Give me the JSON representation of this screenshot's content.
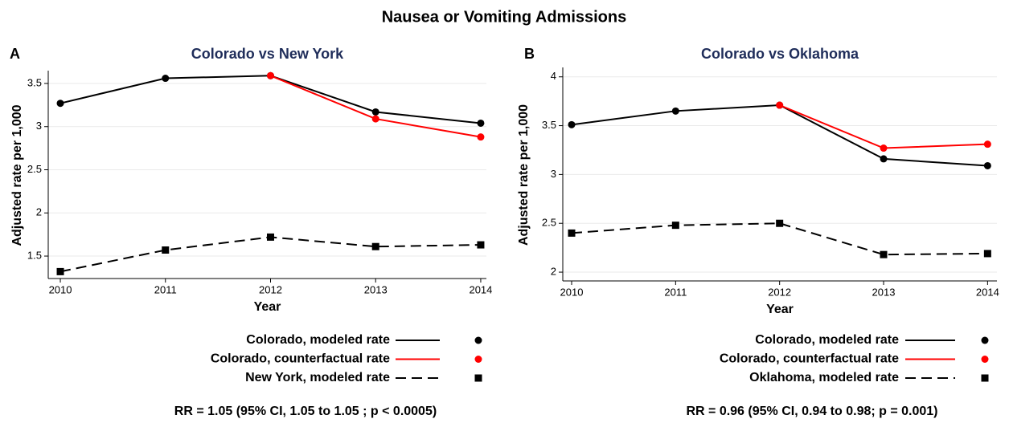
{
  "title": "Nausea or Vomiting Admissions",
  "chart_data": [
    {
      "type": "line",
      "panel_label": "A",
      "title": "Colorado vs New York",
      "xlabel": "Year",
      "ylabel": "Adjusted rate per 1,000",
      "x": [
        2010,
        2011,
        2012,
        2013,
        2014
      ],
      "xlim": [
        2009.885,
        2014.054
      ],
      "xticks": [
        2010,
        2011,
        2012,
        2013,
        2014
      ],
      "ylim": [
        1.24,
        3.63
      ],
      "yticks": [
        1.5,
        2,
        2.5,
        3,
        3.5
      ],
      "grid": true,
      "series": [
        {
          "name": "Colorado, modeled rate",
          "color": "#000000",
          "dash": "solid",
          "marker": "circle",
          "values": [
            3.27,
            3.56,
            3.59,
            3.17,
            3.04
          ]
        },
        {
          "name": "Colorado, counterfactual rate",
          "color": "#ff0000",
          "dash": "solid",
          "marker": "circle",
          "values": [
            null,
            null,
            3.59,
            3.09,
            2.88
          ]
        },
        {
          "name": "New York, modeled rate",
          "color": "#000000",
          "dash": "dashed",
          "marker": "square",
          "values": [
            1.32,
            1.57,
            1.72,
            1.61,
            1.63
          ]
        }
      ],
      "annotation": "RR = 1.05 (95% CI, 1.05 to 1.05 ; p < 0.0005)"
    },
    {
      "type": "line",
      "panel_label": "B",
      "title": "Colorado vs Oklahoma",
      "xlabel": "Year",
      "ylabel": "Adjusted rate per 1,000",
      "x": [
        2010,
        2011,
        2012,
        2013,
        2014
      ],
      "xlim": [
        2009.915,
        2014.09
      ],
      "xticks": [
        2010,
        2011,
        2012,
        2013,
        2014
      ],
      "ylim": [
        1.91,
        4.08
      ],
      "yticks": [
        2,
        2.5,
        3,
        3.5,
        4
      ],
      "grid": true,
      "series": [
        {
          "name": "Colorado, modeled rate",
          "color": "#000000",
          "dash": "solid",
          "marker": "circle",
          "values": [
            3.51,
            3.65,
            3.71,
            3.16,
            3.09
          ]
        },
        {
          "name": "Colorado, counterfactual rate",
          "color": "#ff0000",
          "dash": "solid",
          "marker": "circle",
          "values": [
            null,
            null,
            3.71,
            3.27,
            3.31
          ]
        },
        {
          "name": "Oklahoma, modeled rate",
          "color": "#000000",
          "dash": "dashed",
          "marker": "square",
          "values": [
            2.4,
            2.48,
            2.5,
            2.18,
            2.19
          ]
        }
      ],
      "annotation": "RR = 0.96 (95% CI, 0.94 to 0.98; p = 0.001)"
    }
  ]
}
